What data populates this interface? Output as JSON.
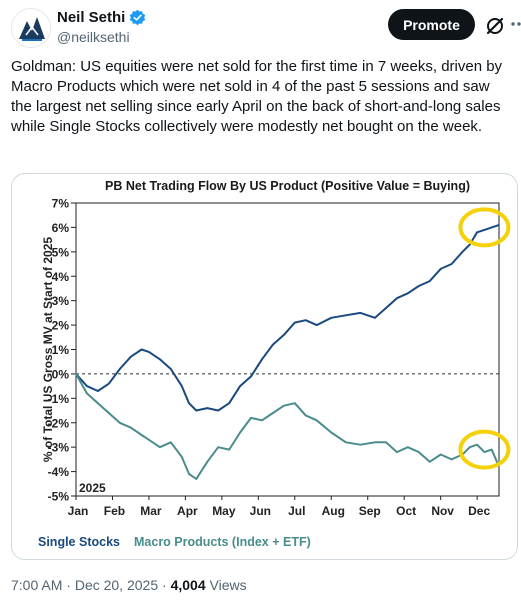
{
  "author": {
    "name": "Neil Sethi",
    "handle": "@neilksethi",
    "verified_color": "#1d9bf0"
  },
  "actions": {
    "promote_label": "Promote",
    "grok_icon": "grok-icon",
    "more_icon": "more-icon"
  },
  "tweet": {
    "text": "Goldman: US equities were net sold for the first time in 7 weeks, driven by Macro Products which were net sold in 4 of the past 5 sessions and saw the largest net selling since early April on the back of short-and-long sales while Single Stocks collectively were modestly net bought on the week."
  },
  "meta": {
    "time": "7:00 AM",
    "separator": " · ",
    "date": "Dec 20, 2025",
    "views_count": "4,004",
    "views_label": " Views"
  },
  "chart_data": {
    "type": "line",
    "title": "PB Net Trading Flow By US Product (Positive Value = Buying)",
    "ylabel": "% of Total US Gross MV at Start of 2025",
    "xlabel": "",
    "year_label": "2025",
    "ylim": [
      -5,
      7
    ],
    "yticks": [
      7,
      6,
      5,
      4,
      3,
      2,
      1,
      0,
      -1,
      -2,
      -3,
      -4,
      -5
    ],
    "ytick_labels": [
      "7%",
      "6%",
      "5%",
      "4%",
      "3%",
      "2%",
      "1%",
      "0%",
      "-1%",
      "-2%",
      "-3%",
      "-4%",
      "-5%"
    ],
    "xlim": [
      0,
      11.6
    ],
    "x_tick_labels": [
      "Jan",
      "Feb",
      "Mar",
      "Apr",
      "May",
      "Jun",
      "Jul",
      "Aug",
      "Sep",
      "Oct",
      "Nov",
      "Dec"
    ],
    "zero_line": "dashed",
    "legend": "bottom-left",
    "highlight_color": "#f5d10a",
    "series": [
      {
        "name": "Single Stocks",
        "color": "#1a4a7f",
        "x": [
          0,
          0.3,
          0.6,
          0.9,
          1.2,
          1.5,
          1.8,
          2.0,
          2.3,
          2.6,
          2.9,
          3.1,
          3.3,
          3.6,
          3.9,
          4.2,
          4.5,
          4.8,
          5.1,
          5.4,
          5.7,
          6.0,
          6.3,
          6.6,
          7.0,
          7.4,
          7.8,
          8.2,
          8.5,
          8.8,
          9.1,
          9.4,
          9.7,
          10.0,
          10.3,
          10.6,
          10.8,
          11.0,
          11.2,
          11.4,
          11.6
        ],
        "y": [
          0,
          -0.5,
          -0.7,
          -0.4,
          0.2,
          0.7,
          1.0,
          0.9,
          0.6,
          0.2,
          -0.5,
          -1.2,
          -1.5,
          -1.4,
          -1.5,
          -1.2,
          -0.5,
          -0.1,
          0.6,
          1.2,
          1.6,
          2.1,
          2.2,
          2.0,
          2.3,
          2.4,
          2.5,
          2.3,
          2.7,
          3.1,
          3.3,
          3.6,
          3.8,
          4.3,
          4.5,
          5.0,
          5.3,
          5.8,
          5.9,
          6.0,
          6.1
        ]
      },
      {
        "name": "Macro Products (Index + ETF)",
        "color": "#4a8c8c",
        "x": [
          0,
          0.3,
          0.6,
          0.9,
          1.2,
          1.5,
          1.8,
          2.0,
          2.3,
          2.6,
          2.9,
          3.1,
          3.3,
          3.6,
          3.9,
          4.2,
          4.5,
          4.8,
          5.1,
          5.4,
          5.7,
          6.0,
          6.3,
          6.6,
          7.0,
          7.4,
          7.8,
          8.2,
          8.5,
          8.8,
          9.1,
          9.4,
          9.7,
          10.0,
          10.3,
          10.6,
          10.8,
          11.0,
          11.2,
          11.4,
          11.6
        ],
        "y": [
          0,
          -0.8,
          -1.2,
          -1.6,
          -2.0,
          -2.2,
          -2.5,
          -2.7,
          -3.0,
          -2.8,
          -3.4,
          -4.1,
          -4.3,
          -3.6,
          -3.0,
          -3.1,
          -2.4,
          -1.8,
          -1.9,
          -1.6,
          -1.3,
          -1.2,
          -1.7,
          -1.9,
          -2.4,
          -2.8,
          -2.9,
          -2.8,
          -2.8,
          -3.2,
          -3.0,
          -3.2,
          -3.6,
          -3.3,
          -3.5,
          -3.3,
          -3.0,
          -2.9,
          -3.2,
          -3.1,
          -3.8
        ]
      }
    ]
  }
}
